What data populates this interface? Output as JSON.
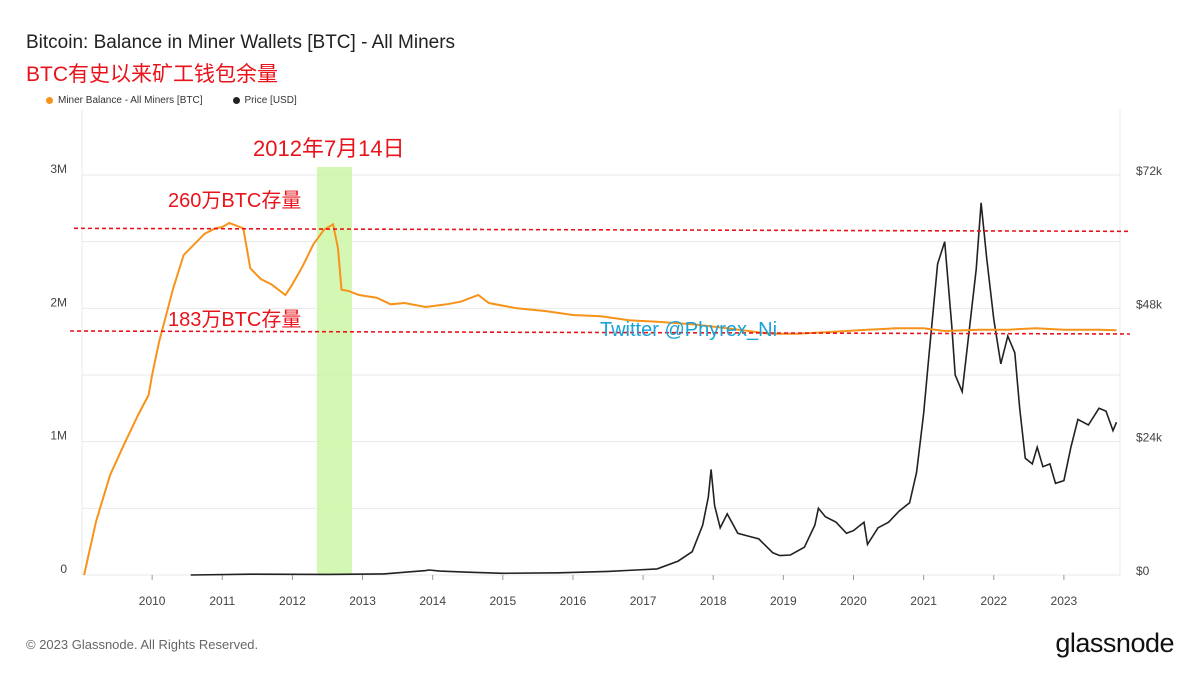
{
  "header": {
    "title": "Bitcoin: Balance in Miner Wallets [BTC] - All Miners",
    "subtitle": "BTC有史以来矿工钱包余量"
  },
  "legend": [
    {
      "label": "Miner Balance - All Miners [BTC]",
      "color": "#f7931a"
    },
    {
      "label": "Price [USD]",
      "color": "#222222"
    }
  ],
  "annotations": {
    "date_label": "2012年7月14日",
    "line_high_label": "260万BTC存量",
    "line_low_label": "183万BTC存量",
    "watermark": "Twitter @Phyrex_Ni"
  },
  "footer": {
    "copyright": "© 2023 Glassnode. All Rights Reserved.",
    "brand": "glassnode"
  },
  "colors": {
    "miner": "#f7931a",
    "price": "#222222",
    "reference": "#e8141b",
    "highlight": "#ccf7a6",
    "watermark": "#19a3d8",
    "grid": "#e9e9e9"
  },
  "chart_data": {
    "type": "line",
    "x_ticks": [
      "2010",
      "2011",
      "2012",
      "2013",
      "2014",
      "2015",
      "2016",
      "2017",
      "2018",
      "2019",
      "2020",
      "2021",
      "2022",
      "2023"
    ],
    "y_left": {
      "ticks": [
        "0",
        "1M",
        "2M",
        "3M"
      ],
      "range": [
        0,
        3000000
      ]
    },
    "y_right": {
      "ticks": [
        "$0",
        "$24k",
        "$48k",
        "$72k"
      ],
      "range": [
        0,
        72000
      ]
    },
    "xlim": [
      2009.0,
      2023.8
    ],
    "highlight_band": [
      2012.35,
      2012.85
    ],
    "reference_lines": [
      2600000,
      1830000
    ],
    "series": [
      {
        "name": "Miner Balance - All Miners [BTC]",
        "axis": "left",
        "points": [
          [
            2009.03,
            0
          ],
          [
            2009.2,
            400000
          ],
          [
            2009.4,
            750000
          ],
          [
            2009.6,
            980000
          ],
          [
            2009.8,
            1200000
          ],
          [
            2009.95,
            1350000
          ],
          [
            2010.0,
            1500000
          ],
          [
            2010.1,
            1750000
          ],
          [
            2010.2,
            1950000
          ],
          [
            2010.3,
            2150000
          ],
          [
            2010.45,
            2400000
          ],
          [
            2010.6,
            2480000
          ],
          [
            2010.75,
            2560000
          ],
          [
            2010.9,
            2600000
          ],
          [
            2011.0,
            2610000
          ],
          [
            2011.1,
            2640000
          ],
          [
            2011.3,
            2600000
          ],
          [
            2011.4,
            2300000
          ],
          [
            2011.55,
            2220000
          ],
          [
            2011.7,
            2180000
          ],
          [
            2011.9,
            2100000
          ],
          [
            2012.0,
            2180000
          ],
          [
            2012.15,
            2320000
          ],
          [
            2012.3,
            2480000
          ],
          [
            2012.45,
            2590000
          ],
          [
            2012.58,
            2630000
          ],
          [
            2012.65,
            2450000
          ],
          [
            2012.7,
            2140000
          ],
          [
            2012.8,
            2130000
          ],
          [
            2012.95,
            2100000
          ],
          [
            2013.2,
            2080000
          ],
          [
            2013.4,
            2030000
          ],
          [
            2013.6,
            2040000
          ],
          [
            2013.9,
            2010000
          ],
          [
            2014.2,
            2030000
          ],
          [
            2014.4,
            2050000
          ],
          [
            2014.65,
            2100000
          ],
          [
            2014.8,
            2040000
          ],
          [
            2015.2,
            2000000
          ],
          [
            2015.6,
            1980000
          ],
          [
            2016.0,
            1950000
          ],
          [
            2016.4,
            1940000
          ],
          [
            2016.8,
            1910000
          ],
          [
            2017.2,
            1900000
          ],
          [
            2017.7,
            1880000
          ],
          [
            2018.2,
            1850000
          ],
          [
            2018.8,
            1810000
          ],
          [
            2019.2,
            1810000
          ],
          [
            2019.6,
            1820000
          ],
          [
            2020.2,
            1840000
          ],
          [
            2020.6,
            1850000
          ],
          [
            2021.0,
            1850000
          ],
          [
            2021.3,
            1830000
          ],
          [
            2021.8,
            1840000
          ],
          [
            2022.2,
            1840000
          ],
          [
            2022.6,
            1850000
          ],
          [
            2023.0,
            1840000
          ],
          [
            2023.5,
            1840000
          ],
          [
            2023.75,
            1835000
          ]
        ]
      },
      {
        "name": "Price [USD]",
        "axis": "right",
        "points": [
          [
            2010.55,
            0
          ],
          [
            2011.4,
            150
          ],
          [
            2012.5,
            100
          ],
          [
            2013.3,
            200
          ],
          [
            2013.9,
            800
          ],
          [
            2013.95,
            900
          ],
          [
            2014.1,
            700
          ],
          [
            2014.5,
            500
          ],
          [
            2015.0,
            300
          ],
          [
            2015.8,
            400
          ],
          [
            2016.5,
            650
          ],
          [
            2016.9,
            900
          ],
          [
            2017.2,
            1100
          ],
          [
            2017.5,
            2500
          ],
          [
            2017.7,
            4200
          ],
          [
            2017.85,
            9000
          ],
          [
            2017.93,
            14000
          ],
          [
            2017.97,
            19000
          ],
          [
            2018.02,
            12500
          ],
          [
            2018.1,
            8500
          ],
          [
            2018.2,
            11000
          ],
          [
            2018.35,
            7500
          ],
          [
            2018.5,
            7000
          ],
          [
            2018.65,
            6500
          ],
          [
            2018.85,
            4000
          ],
          [
            2018.95,
            3500
          ],
          [
            2019.1,
            3600
          ],
          [
            2019.3,
            5000
          ],
          [
            2019.45,
            9000
          ],
          [
            2019.5,
            12000
          ],
          [
            2019.6,
            10500
          ],
          [
            2019.75,
            9500
          ],
          [
            2019.9,
            7500
          ],
          [
            2020.0,
            8000
          ],
          [
            2020.15,
            9500
          ],
          [
            2020.2,
            5500
          ],
          [
            2020.35,
            8500
          ],
          [
            2020.5,
            9500
          ],
          [
            2020.65,
            11500
          ],
          [
            2020.8,
            13000
          ],
          [
            2020.9,
            18500
          ],
          [
            2021.0,
            29000
          ],
          [
            2021.08,
            40000
          ],
          [
            2021.2,
            56000
          ],
          [
            2021.3,
            60000
          ],
          [
            2021.4,
            45000
          ],
          [
            2021.45,
            36000
          ],
          [
            2021.55,
            33000
          ],
          [
            2021.65,
            44000
          ],
          [
            2021.75,
            55000
          ],
          [
            2021.82,
            67000
          ],
          [
            2021.9,
            57000
          ],
          [
            2022.0,
            46000
          ],
          [
            2022.1,
            38000
          ],
          [
            2022.2,
            43000
          ],
          [
            2022.3,
            40000
          ],
          [
            2022.37,
            30000
          ],
          [
            2022.45,
            21000
          ],
          [
            2022.55,
            20000
          ],
          [
            2022.62,
            23000
          ],
          [
            2022.7,
            19500
          ],
          [
            2022.8,
            20000
          ],
          [
            2022.88,
            16500
          ],
          [
            2023.0,
            17000
          ],
          [
            2023.1,
            23000
          ],
          [
            2023.2,
            28000
          ],
          [
            2023.35,
            27000
          ],
          [
            2023.5,
            30000
          ],
          [
            2023.6,
            29500
          ],
          [
            2023.7,
            26000
          ],
          [
            2023.75,
            27500
          ]
        ]
      }
    ]
  }
}
